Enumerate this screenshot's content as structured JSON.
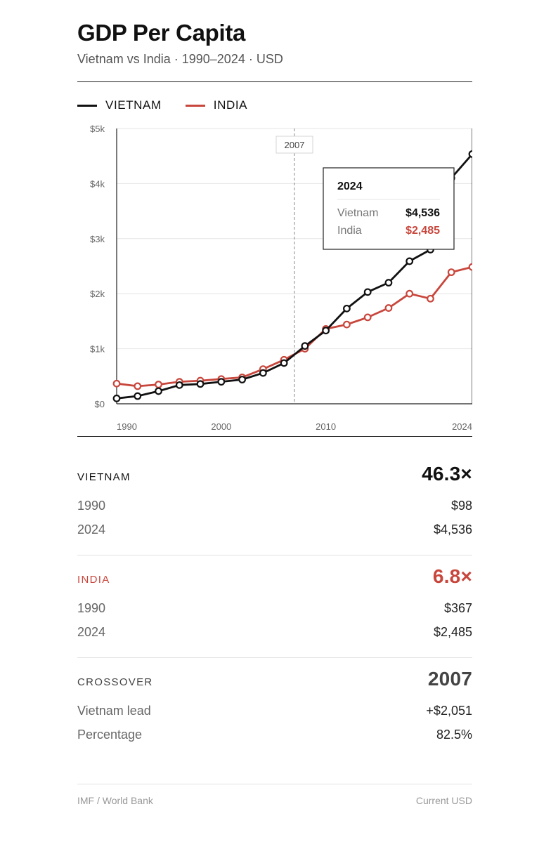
{
  "header": {
    "title": "GDP Per Capita",
    "subtitle": "Vietnam vs India · 1990–2024 · USD"
  },
  "colors": {
    "vietnam": "#111111",
    "india": "#c8463c",
    "grid": "#e4e4e4",
    "axis": "#222222"
  },
  "legend": [
    {
      "label": "VIETNAM",
      "color": "#111111"
    },
    {
      "label": "INDIA",
      "color": "#c8463c"
    }
  ],
  "chart_data": {
    "type": "line",
    "title": "GDP Per Capita",
    "xlabel": "",
    "ylabel": "",
    "xlim": [
      1990,
      2024
    ],
    "ylim": [
      0,
      5000
    ],
    "y_ticks": [
      0,
      1000,
      2000,
      3000,
      4000,
      5000
    ],
    "y_tick_labels": [
      "$0",
      "$1k",
      "$2k",
      "$3k",
      "$4k",
      "$5k"
    ],
    "x_ticks": [
      1990,
      2000,
      2010,
      2024
    ],
    "x_tick_labels": [
      "1990",
      "2000",
      "2010",
      "2024"
    ],
    "crossover_year": 2007,
    "crossover_label": "2007",
    "series": [
      {
        "name": "Vietnam",
        "color": "#111111",
        "x": [
          1990,
          1992,
          1994,
          1996,
          1998,
          2000,
          2002,
          2004,
          2006,
          2008,
          2010,
          2012,
          2014,
          2016,
          2018,
          2020,
          2022,
          2024
        ],
        "values": [
          98,
          140,
          230,
          340,
          360,
          400,
          440,
          560,
          740,
          1050,
          1330,
          1730,
          2030,
          2200,
          2590,
          2800,
          4100,
          4536
        ]
      },
      {
        "name": "India",
        "color": "#c8463c",
        "x": [
          1990,
          1992,
          1994,
          1996,
          1998,
          2000,
          2002,
          2004,
          2006,
          2008,
          2010,
          2012,
          2014,
          2016,
          2018,
          2020,
          2022,
          2024
        ],
        "values": [
          367,
          320,
          350,
          400,
          420,
          450,
          480,
          630,
          800,
          1000,
          1360,
          1440,
          1570,
          1740,
          2000,
          1910,
          2390,
          2485
        ]
      }
    ],
    "tooltip": {
      "title": "2024",
      "rows": [
        {
          "name": "Vietnam",
          "value": "$4,536"
        },
        {
          "name": "India",
          "value": "$2,485"
        }
      ]
    }
  },
  "stats": {
    "vietnam": {
      "label": "VIETNAM",
      "ratio": "46.3×",
      "rows": [
        {
          "k": "1990",
          "v": "$98"
        },
        {
          "k": "2024",
          "v": "$4,536"
        }
      ]
    },
    "india": {
      "label": "INDIA",
      "ratio": "6.8×",
      "rows": [
        {
          "k": "1990",
          "v": "$367"
        },
        {
          "k": "2024",
          "v": "$2,485"
        }
      ]
    },
    "crossover": {
      "label": "CROSSOVER",
      "year": "2007",
      "rows": [
        {
          "k": "Vietnam lead",
          "v": "+$2,051"
        },
        {
          "k": "Percentage",
          "v": "82.5%"
        }
      ]
    }
  },
  "footer": {
    "source": "IMF / World Bank",
    "unit": "Current USD"
  }
}
